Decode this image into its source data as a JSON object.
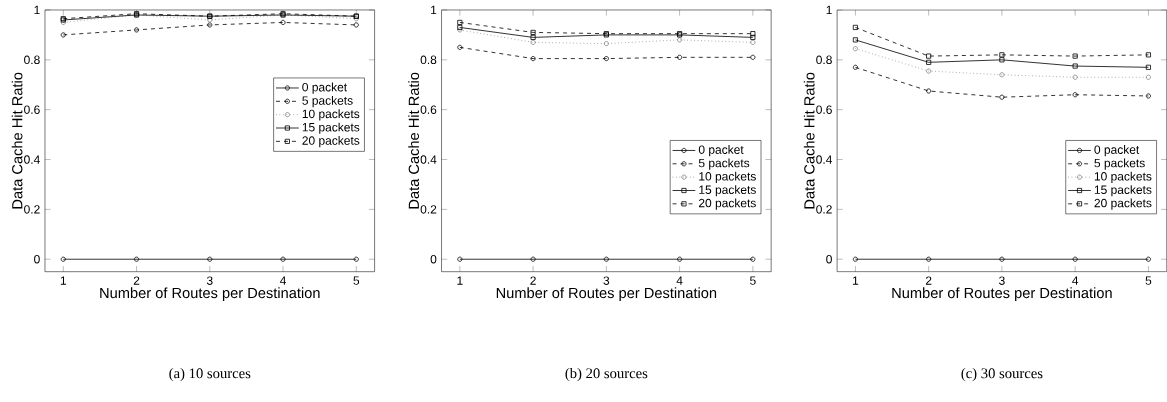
{
  "chart_data": [
    {
      "type": "line",
      "xlabel": "Number of Routes per Destination",
      "ylabel": "Data Cache Hit Ratio",
      "annotations": [
        "(a) 10 sources"
      ],
      "x": [
        1,
        2,
        3,
        4,
        5
      ],
      "xlim": [
        0.75,
        5.25
      ],
      "ylim": [
        -0.05,
        1
      ],
      "xticks": [
        1,
        2,
        3,
        4,
        5
      ],
      "yticks": [
        0,
        0.2,
        0.4,
        0.6,
        0.8,
        1
      ],
      "legend": "right",
      "grid": false,
      "series": [
        {
          "name": "0 packet",
          "color": "#000000",
          "marker": "circle",
          "line_style": "solid",
          "values": [
            0,
            0,
            0,
            0,
            0
          ]
        },
        {
          "name": "5 packets",
          "color": "#000000",
          "marker": "circle",
          "line_style": "dashed",
          "values": [
            0.9,
            0.92,
            0.94,
            0.95,
            0.94
          ]
        },
        {
          "name": "10 packets",
          "color": "#808080",
          "marker": "circle",
          "line_style": "dotted",
          "values": [
            0.95,
            0.98,
            0.96,
            0.98,
            0.965
          ]
        },
        {
          "name": "15 packets",
          "color": "#000000",
          "marker": "square",
          "line_style": "solid",
          "values": [
            0.96,
            0.98,
            0.975,
            0.98,
            0.975
          ]
        },
        {
          "name": "20 packets",
          "color": "#000000",
          "marker": "square",
          "line_style": "dashed",
          "values": [
            0.965,
            0.985,
            0.975,
            0.985,
            0.975
          ]
        }
      ]
    },
    {
      "type": "line",
      "xlabel": "Number of Routes per Destination",
      "ylabel": "Data Cache Hit Ratio",
      "annotations": [
        "(b) 20 sources"
      ],
      "x": [
        1,
        2,
        3,
        4,
        5
      ],
      "xlim": [
        0.75,
        5.25
      ],
      "ylim": [
        -0.05,
        1
      ],
      "xticks": [
        1,
        2,
        3,
        4,
        5
      ],
      "yticks": [
        0,
        0.2,
        0.4,
        0.6,
        0.8,
        1
      ],
      "legend": "bottom right",
      "grid": false,
      "series": [
        {
          "name": "0 packet",
          "color": "#000000",
          "marker": "circle",
          "line_style": "solid",
          "values": [
            0,
            0,
            0,
            0,
            0
          ]
        },
        {
          "name": "5 packets",
          "color": "#000000",
          "marker": "circle",
          "line_style": "dashed",
          "values": [
            0.85,
            0.805,
            0.805,
            0.81,
            0.81
          ]
        },
        {
          "name": "10 packets",
          "color": "#808080",
          "marker": "circle",
          "line_style": "dotted",
          "values": [
            0.92,
            0.87,
            0.865,
            0.88,
            0.87
          ]
        },
        {
          "name": "15 packets",
          "color": "#000000",
          "marker": "square",
          "line_style": "solid",
          "values": [
            0.93,
            0.89,
            0.9,
            0.9,
            0.89
          ]
        },
        {
          "name": "20 packets",
          "color": "#000000",
          "marker": "square",
          "line_style": "dashed",
          "values": [
            0.95,
            0.91,
            0.905,
            0.905,
            0.905
          ]
        }
      ]
    },
    {
      "type": "line",
      "xlabel": "Number of Routes per Destination",
      "ylabel": "Data Cache Hit Ratio",
      "annotations": [
        "(c) 30 sources"
      ],
      "x": [
        1,
        2,
        3,
        4,
        5
      ],
      "xlim": [
        0.75,
        5.25
      ],
      "ylim": [
        -0.05,
        1
      ],
      "xticks": [
        1,
        2,
        3,
        4,
        5
      ],
      "yticks": [
        0,
        0.2,
        0.4,
        0.6,
        0.8,
        1
      ],
      "legend": "bottom right",
      "grid": false,
      "series": [
        {
          "name": "0 packet",
          "color": "#000000",
          "marker": "circle",
          "line_style": "solid",
          "values": [
            0,
            0,
            0,
            0,
            0
          ]
        },
        {
          "name": "5 packets",
          "color": "#000000",
          "marker": "circle",
          "line_style": "dashed",
          "values": [
            0.77,
            0.675,
            0.65,
            0.66,
            0.655
          ]
        },
        {
          "name": "10 packets",
          "color": "#808080",
          "marker": "circle",
          "line_style": "dotted",
          "values": [
            0.845,
            0.755,
            0.74,
            0.73,
            0.73
          ]
        },
        {
          "name": "15 packets",
          "color": "#000000",
          "marker": "square",
          "line_style": "solid",
          "values": [
            0.88,
            0.79,
            0.8,
            0.775,
            0.77
          ]
        },
        {
          "name": "20 packets",
          "color": "#000000",
          "marker": "square",
          "line_style": "dashed",
          "values": [
            0.93,
            0.815,
            0.82,
            0.815,
            0.82
          ]
        }
      ]
    }
  ]
}
